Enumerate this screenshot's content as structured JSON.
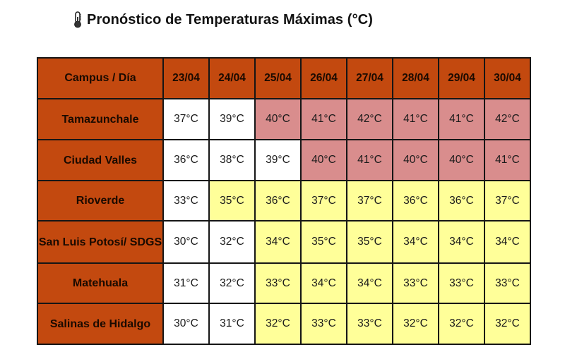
{
  "title": "Pronóstico de Temperaturas Máximas (°C)",
  "icon": "thermometer-icon",
  "colors": {
    "header": "#c3490f",
    "normal": "#ffffff",
    "warm": "#ffff99",
    "hot": "#d98d8d"
  },
  "table": {
    "corner_label": "Campus / Día",
    "dates": [
      "23/04",
      "24/04",
      "25/04",
      "26/04",
      "27/04",
      "28/04",
      "29/04",
      "30/04"
    ],
    "rows": [
      {
        "campus": "Tamazunchale",
        "temps": [
          "37°C",
          "39°C",
          "40°C",
          "41°C",
          "42°C",
          "41°C",
          "41°C",
          "42°C"
        ],
        "levels": [
          "normal",
          "normal",
          "hot",
          "hot",
          "hot",
          "hot",
          "hot",
          "hot"
        ]
      },
      {
        "campus": "Ciudad Valles",
        "temps": [
          "36°C",
          "38°C",
          "39°C",
          "40°C",
          "41°C",
          "40°C",
          "40°C",
          "41°C"
        ],
        "levels": [
          "normal",
          "normal",
          "normal",
          "hot",
          "hot",
          "hot",
          "hot",
          "hot"
        ]
      },
      {
        "campus": "Rioverde",
        "temps": [
          "33°C",
          "35°C",
          "36°C",
          "37°C",
          "37°C",
          "36°C",
          "36°C",
          "37°C"
        ],
        "levels": [
          "normal",
          "warm",
          "warm",
          "warm",
          "warm",
          "warm",
          "warm",
          "warm"
        ]
      },
      {
        "campus": "San Luis Potosí/ SDGS",
        "temps": [
          "30°C",
          "32°C",
          "34°C",
          "35°C",
          "35°C",
          "34°C",
          "34°C",
          "34°C"
        ],
        "levels": [
          "normal",
          "normal",
          "warm",
          "warm",
          "warm",
          "warm",
          "warm",
          "warm"
        ]
      },
      {
        "campus": "Matehuala",
        "temps": [
          "31°C",
          "32°C",
          "33°C",
          "34°C",
          "34°C",
          "33°C",
          "33°C",
          "33°C"
        ],
        "levels": [
          "normal",
          "normal",
          "warm",
          "warm",
          "warm",
          "warm",
          "warm",
          "warm"
        ]
      },
      {
        "campus": "Salinas de Hidalgo",
        "temps": [
          "30°C",
          "31°C",
          "32°C",
          "33°C",
          "33°C",
          "32°C",
          "32°C",
          "32°C"
        ],
        "levels": [
          "normal",
          "normal",
          "warm",
          "warm",
          "warm",
          "warm",
          "warm",
          "warm"
        ]
      }
    ]
  }
}
